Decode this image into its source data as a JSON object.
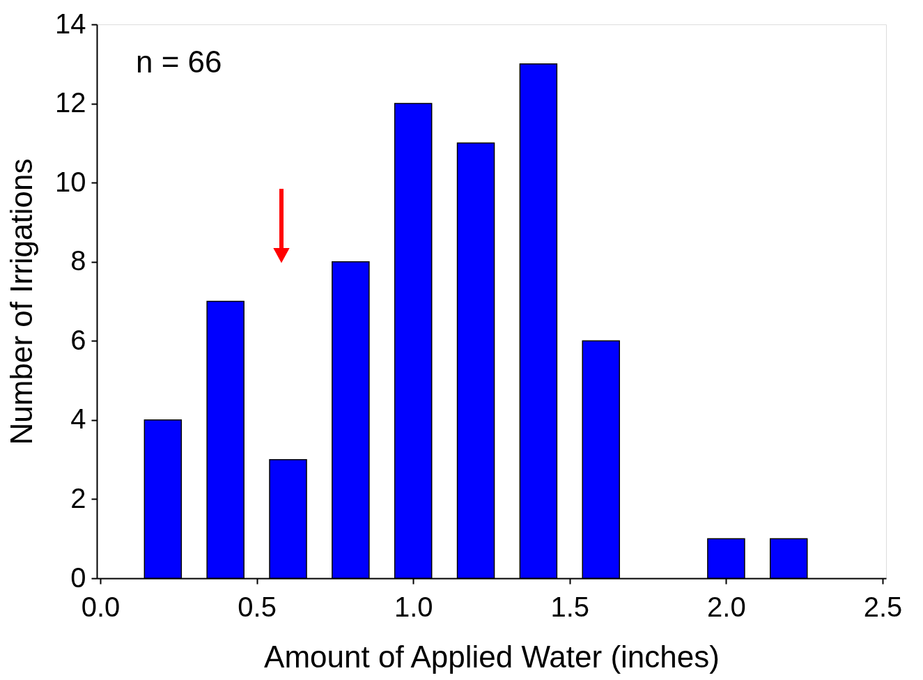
{
  "chart_data": {
    "type": "bar",
    "xlabel": "Amount of Applied Water (inches)",
    "ylabel": "Number of Irrigations",
    "x": [
      0.2,
      0.4,
      0.6,
      0.8,
      1.0,
      1.2,
      1.4,
      1.6,
      2.0,
      2.2
    ],
    "values": [
      4,
      7,
      3,
      8,
      12,
      11,
      13,
      6,
      1,
      1
    ],
    "color": "#0000ff",
    "xlim": [
      0,
      2.5
    ],
    "xticks": [
      {
        "value": 0,
        "label": "0.0"
      },
      {
        "value": 0.5,
        "label": "0.5"
      },
      {
        "value": 1,
        "label": "1.0"
      },
      {
        "value": 1.5,
        "label": "1.5"
      },
      {
        "value": 2,
        "label": "2.0"
      },
      {
        "value": 2.5,
        "label": "2.5"
      }
    ],
    "ylim": [
      0,
      14
    ],
    "yticks": [
      0,
      2,
      4,
      6,
      8,
      10,
      12,
      14
    ],
    "annotations": [
      "n = 66"
    ],
    "grid": false
  }
}
